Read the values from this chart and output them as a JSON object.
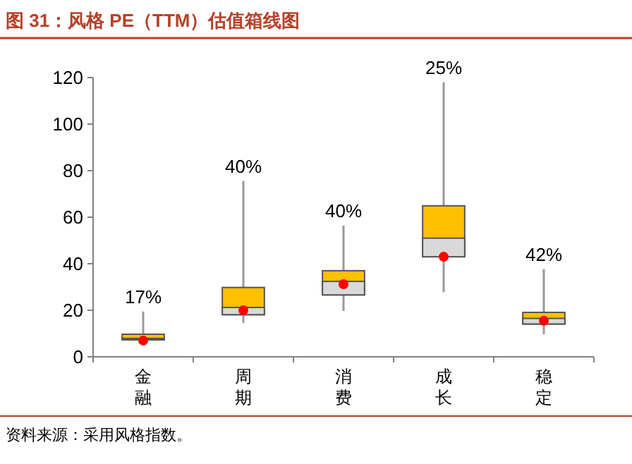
{
  "chart_data": {
    "type": "box",
    "title": "图 31：风格 PE（TTM）估值箱线图",
    "categories": [
      "金融",
      "周期",
      "消费",
      "成长",
      "稳定"
    ],
    "ylim": [
      0,
      120
    ],
    "yticks": [
      0,
      20,
      40,
      60,
      80,
      100,
      120
    ],
    "grid": false,
    "series": [
      {
        "color": "#d9d9d9",
        "colors": [
          "#ffc000",
          "#ffc000",
          "#ffc000",
          "#ffc000",
          "#ffc000"
        ],
        "boxes": [
          {
            "low": 6.5,
            "q1": 7.3,
            "median": 7.9,
            "q3": 9.7,
            "high": 19.5
          },
          {
            "low": 14.5,
            "q1": 18.1,
            "median": 21.2,
            "q3": 29.8,
            "high": 75.6
          },
          {
            "low": 19.7,
            "q1": 26.6,
            "median": 32.4,
            "q3": 37,
            "high": 56.4
          },
          {
            "low": 27.8,
            "q1": 43,
            "median": 51,
            "q3": 64.9,
            "high": 118
          },
          {
            "low": 9.7,
            "q1": 14.1,
            "median": 16.5,
            "q3": 19.1,
            "high": 37.7
          }
        ]
      },
      {
        "type": "scatter",
        "color": "#ff0000",
        "x": [
          "金融",
          "周期",
          "消费",
          "成长",
          "稳定"
        ],
        "values": [
          7,
          20,
          31.2,
          43,
          15.5
        ]
      }
    ],
    "annotations": [
      {
        "text": "17%",
        "x": "金融",
        "y": 19.5
      },
      {
        "text": "40%",
        "x": "周期",
        "y": 75.6
      },
      {
        "text": "40%",
        "x": "消费",
        "y": 56.4
      },
      {
        "text": "25%",
        "x": "成长",
        "y": 118
      },
      {
        "text": "42%",
        "x": "稳定",
        "y": 37.7
      },
      "资料来源：采用风格指数。"
    ]
  }
}
